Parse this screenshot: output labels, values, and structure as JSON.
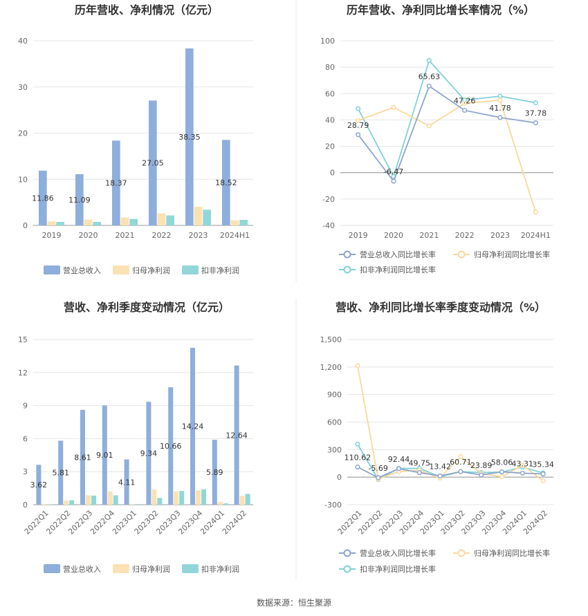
{
  "colors": {
    "revenue": "#8EAEDC",
    "net_profit": "#FCE2B2",
    "deducted_profit": "#91D7D9",
    "line_revenue": "#8EA4CC",
    "line_net": "#F9D99A",
    "line_deducted": "#7FD2D6",
    "grid": "#E5E5E5",
    "divider": "#E8E8E8"
  },
  "footer": {
    "source": "数据来源：恒生聚源"
  },
  "chart_data": [
    {
      "id": "annual-bar",
      "type": "bar",
      "title": "历年营收、净利情况（亿元）",
      "categories": [
        "2019",
        "2020",
        "2021",
        "2022",
        "2023",
        "2024H1"
      ],
      "ylim": [
        0,
        40
      ],
      "yticks": [
        "0",
        "10",
        "20",
        "30",
        "40"
      ],
      "grid": true,
      "legend_position": "bottom",
      "series": [
        {
          "name": "营业总收入",
          "values": [
            11.86,
            11.09,
            18.37,
            27.05,
            38.35,
            18.52
          ],
          "labels": [
            "11.86",
            "11.09",
            "18.37",
            "27.05",
            "38.35",
            "18.52"
          ]
        },
        {
          "name": "归母净利润",
          "values": [
            0.85,
            1.25,
            1.7,
            2.6,
            4.05,
            1.1
          ]
        },
        {
          "name": "扣非净利润",
          "values": [
            0.75,
            0.75,
            1.4,
            2.15,
            3.4,
            1.2
          ]
        }
      ]
    },
    {
      "id": "annual-line",
      "type": "line",
      "title": "历年营收、净利同比增长率情况（%）",
      "categories": [
        "2019",
        "2020",
        "2021",
        "2022",
        "2023",
        "2024H1"
      ],
      "ylim": [
        -40,
        100
      ],
      "yticks": [
        "-40",
        "-20",
        "0",
        "20",
        "40",
        "60",
        "80",
        "100"
      ],
      "grid": true,
      "legend_position": "bottom",
      "series": [
        {
          "name": "营业总收入同比增长率",
          "values": [
            28.79,
            -6.47,
            65.63,
            47.26,
            41.78,
            37.78
          ],
          "labels": [
            "28.79",
            "-6.47",
            "65.63",
            "47.26",
            "41.78",
            "37.78"
          ]
        },
        {
          "name": "归母净利润同比增长率",
          "values": [
            39.5,
            49.5,
            35.5,
            52.5,
            55.0,
            -30.0
          ]
        },
        {
          "name": "扣非净利润同比增长率",
          "values": [
            48.5,
            -3.0,
            85.0,
            55.0,
            58.0,
            53.0
          ]
        }
      ]
    },
    {
      "id": "quarterly-bar",
      "type": "bar",
      "title": "营收、净利季度变动情况（亿元）",
      "categories": [
        "2022Q1",
        "2022Q2",
        "2022Q3",
        "2022Q4",
        "2023Q1",
        "2023Q2",
        "2023Q3",
        "2023Q4",
        "2024Q1",
        "2024Q2"
      ],
      "ylim": [
        0,
        15
      ],
      "yticks": [
        "0",
        "3",
        "6",
        "9",
        "12",
        "15"
      ],
      "grid": true,
      "legend_position": "bottom",
      "series": [
        {
          "name": "营业总收入",
          "values": [
            3.62,
            5.81,
            8.61,
            9.01,
            4.11,
            9.34,
            10.66,
            14.24,
            5.89,
            12.64
          ],
          "labels": [
            "3.62",
            "5.81",
            "8.61",
            "9.01",
            "4.11",
            "9.34",
            "10.66",
            "14.24",
            "5.89",
            "12.64"
          ]
        },
        {
          "name": "归母净利润",
          "values": [
            0.05,
            0.38,
            0.85,
            1.2,
            0.05,
            1.38,
            1.2,
            1.3,
            0.25,
            0.8
          ]
        },
        {
          "name": "扣非净利润",
          "values": [
            0.03,
            0.4,
            0.82,
            0.85,
            0.05,
            0.62,
            1.25,
            1.4,
            0.12,
            0.98
          ]
        }
      ]
    },
    {
      "id": "quarterly-line",
      "type": "line",
      "title": "营收、净利同比增长率季度变动情况（%）",
      "categories": [
        "2022Q1",
        "2022Q2",
        "2022Q3",
        "2022Q4",
        "2023Q1",
        "2023Q2",
        "2023Q3",
        "2023Q4",
        "2024Q1",
        "2024Q2"
      ],
      "ylim": [
        -300,
        1500
      ],
      "yticks": [
        "-300",
        "0",
        "300",
        "600",
        "900",
        "1,200",
        "1,500"
      ],
      "grid": true,
      "legend_position": "bottom",
      "series": [
        {
          "name": "营业总收入同比增长率",
          "values": [
            110.62,
            -5.69,
            92.44,
            49.75,
            13.42,
            60.71,
            23.89,
            58.06,
            43.31,
            35.34
          ],
          "labels": [
            "110.62",
            "-5.69",
            "92.44",
            "49.75",
            "13.42",
            "60.71",
            "23.89",
            "58.06",
            "43.31",
            "35.34"
          ]
        },
        {
          "name": "归母净利润同比增长率",
          "values": [
            1215,
            -20,
            60,
            75,
            -10,
            225,
            40,
            5,
            130,
            -40
          ]
        },
        {
          "name": "扣非净利润同比增长率",
          "values": [
            360,
            -25,
            95,
            95,
            5,
            60,
            50,
            55,
            110,
            45
          ]
        }
      ]
    }
  ]
}
